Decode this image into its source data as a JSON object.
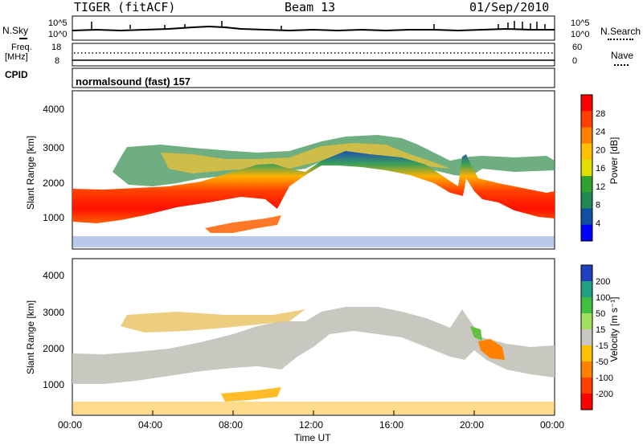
{
  "header": {
    "radar": "TIGER (fitACF)",
    "beam": "Beam 13",
    "date": "01/Sep/2010"
  },
  "sky_panel": {
    "left_label": "N.Sky",
    "left_ticks": [
      "10^5",
      "10^0"
    ],
    "right_label": "N.Search",
    "right_ticks": [
      "10^5",
      "10^0"
    ]
  },
  "freq_panel": {
    "left_label": "Freq.",
    "left_unit": "[MHz]",
    "left_ticks": [
      "18",
      "8"
    ],
    "right_label": "Nave",
    "right_ticks": [
      "60",
      "0"
    ]
  },
  "cpid_panel": {
    "label": "CPID",
    "program": "normalsound (fast) 157"
  },
  "xaxis": {
    "label": "Time UT",
    "ticks": [
      "00:00",
      "04:00",
      "08:00",
      "12:00",
      "16:00",
      "20:00",
      "00:00"
    ]
  },
  "colorbars": {
    "power": {
      "label": "Power [dB]",
      "ticks": [
        "28",
        "24",
        "20",
        "16",
        "12",
        "8",
        "4"
      ],
      "colors": [
        "#ff0000",
        "#ff4000",
        "#ff8000",
        "#ffc000",
        "#e0e000",
        "#30a030",
        "#208850",
        "#1050a0",
        "#0000ff"
      ]
    },
    "velocity": {
      "label": "Velocity [m s⁻¹]",
      "ticks": [
        "200",
        "100",
        "50",
        "15",
        "-15",
        "-50",
        "-100",
        "-200"
      ],
      "colors": [
        "#2040c0",
        "#20a080",
        "#40c040",
        "#a0e060",
        "#c8c8c0",
        "#ffc000",
        "#ff8000",
        "#ff4000",
        "#ff0000"
      ]
    }
  },
  "chart_data": [
    {
      "type": "heatmap",
      "title": "Power",
      "xlabel": "Time UT",
      "ylabel": "Slant Range [km]",
      "yticks": [
        1000,
        2000,
        3000,
        4000
      ],
      "ylim": [
        200,
        4600
      ],
      "xlim_hours": [
        0,
        24
      ],
      "colorbar_range": [
        3,
        30
      ],
      "main_echo_band_range_km": [
        [
          0,
          1450
        ],
        [
          2,
          1500
        ],
        [
          4,
          1550
        ],
        [
          6,
          1680
        ],
        [
          8,
          1850
        ],
        [
          10,
          2150
        ],
        [
          11,
          2500
        ],
        [
          12,
          2800
        ],
        [
          14,
          2900
        ],
        [
          16,
          2700
        ],
        [
          18,
          2150
        ],
        [
          19,
          2000
        ],
        [
          19.3,
          3000
        ],
        [
          20,
          2000
        ],
        [
          22,
          1650
        ],
        [
          24,
          1450
        ]
      ]
    },
    {
      "type": "heatmap",
      "title": "Velocity",
      "xlabel": "Time UT",
      "ylabel": "Slant Range [km]",
      "yticks": [
        1000,
        2000,
        3000,
        4000
      ],
      "ylim": [
        200,
        4600
      ],
      "xlim_hours": [
        0,
        24
      ],
      "colorbar_range": [
        -220,
        220
      ]
    }
  ]
}
